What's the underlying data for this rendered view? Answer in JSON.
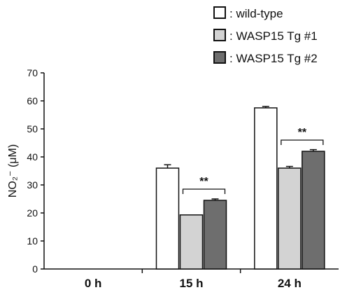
{
  "chart_data": {
    "type": "bar",
    "categories": [
      "0 h",
      "15 h",
      "24 h"
    ],
    "ylabel": "NO₂⁻ (μM)",
    "ylim": [
      0,
      70
    ],
    "yticks": [
      0,
      10,
      20,
      30,
      40,
      50,
      60,
      70
    ],
    "grid": false,
    "legend_position": "top-right",
    "series": [
      {
        "name": ": wild-type",
        "color": "#ffffff",
        "values": [
          0,
          36,
          57.5
        ],
        "errors": [
          0,
          1.2,
          0.5
        ]
      },
      {
        "name": ": WASP15 Tg #1",
        "color": "#d3d3d3",
        "values": [
          0,
          19.3,
          36
        ],
        "errors": [
          0,
          0,
          0.6
        ]
      },
      {
        "name": ": WASP15 Tg #2",
        "color": "#6e6e6e",
        "values": [
          0,
          24.5,
          42
        ],
        "errors": [
          0,
          0.5,
          0.6
        ]
      }
    ],
    "annotations": [
      {
        "text": "**",
        "category": "15 h"
      },
      {
        "text": "**",
        "category": "24 h"
      }
    ]
  }
}
